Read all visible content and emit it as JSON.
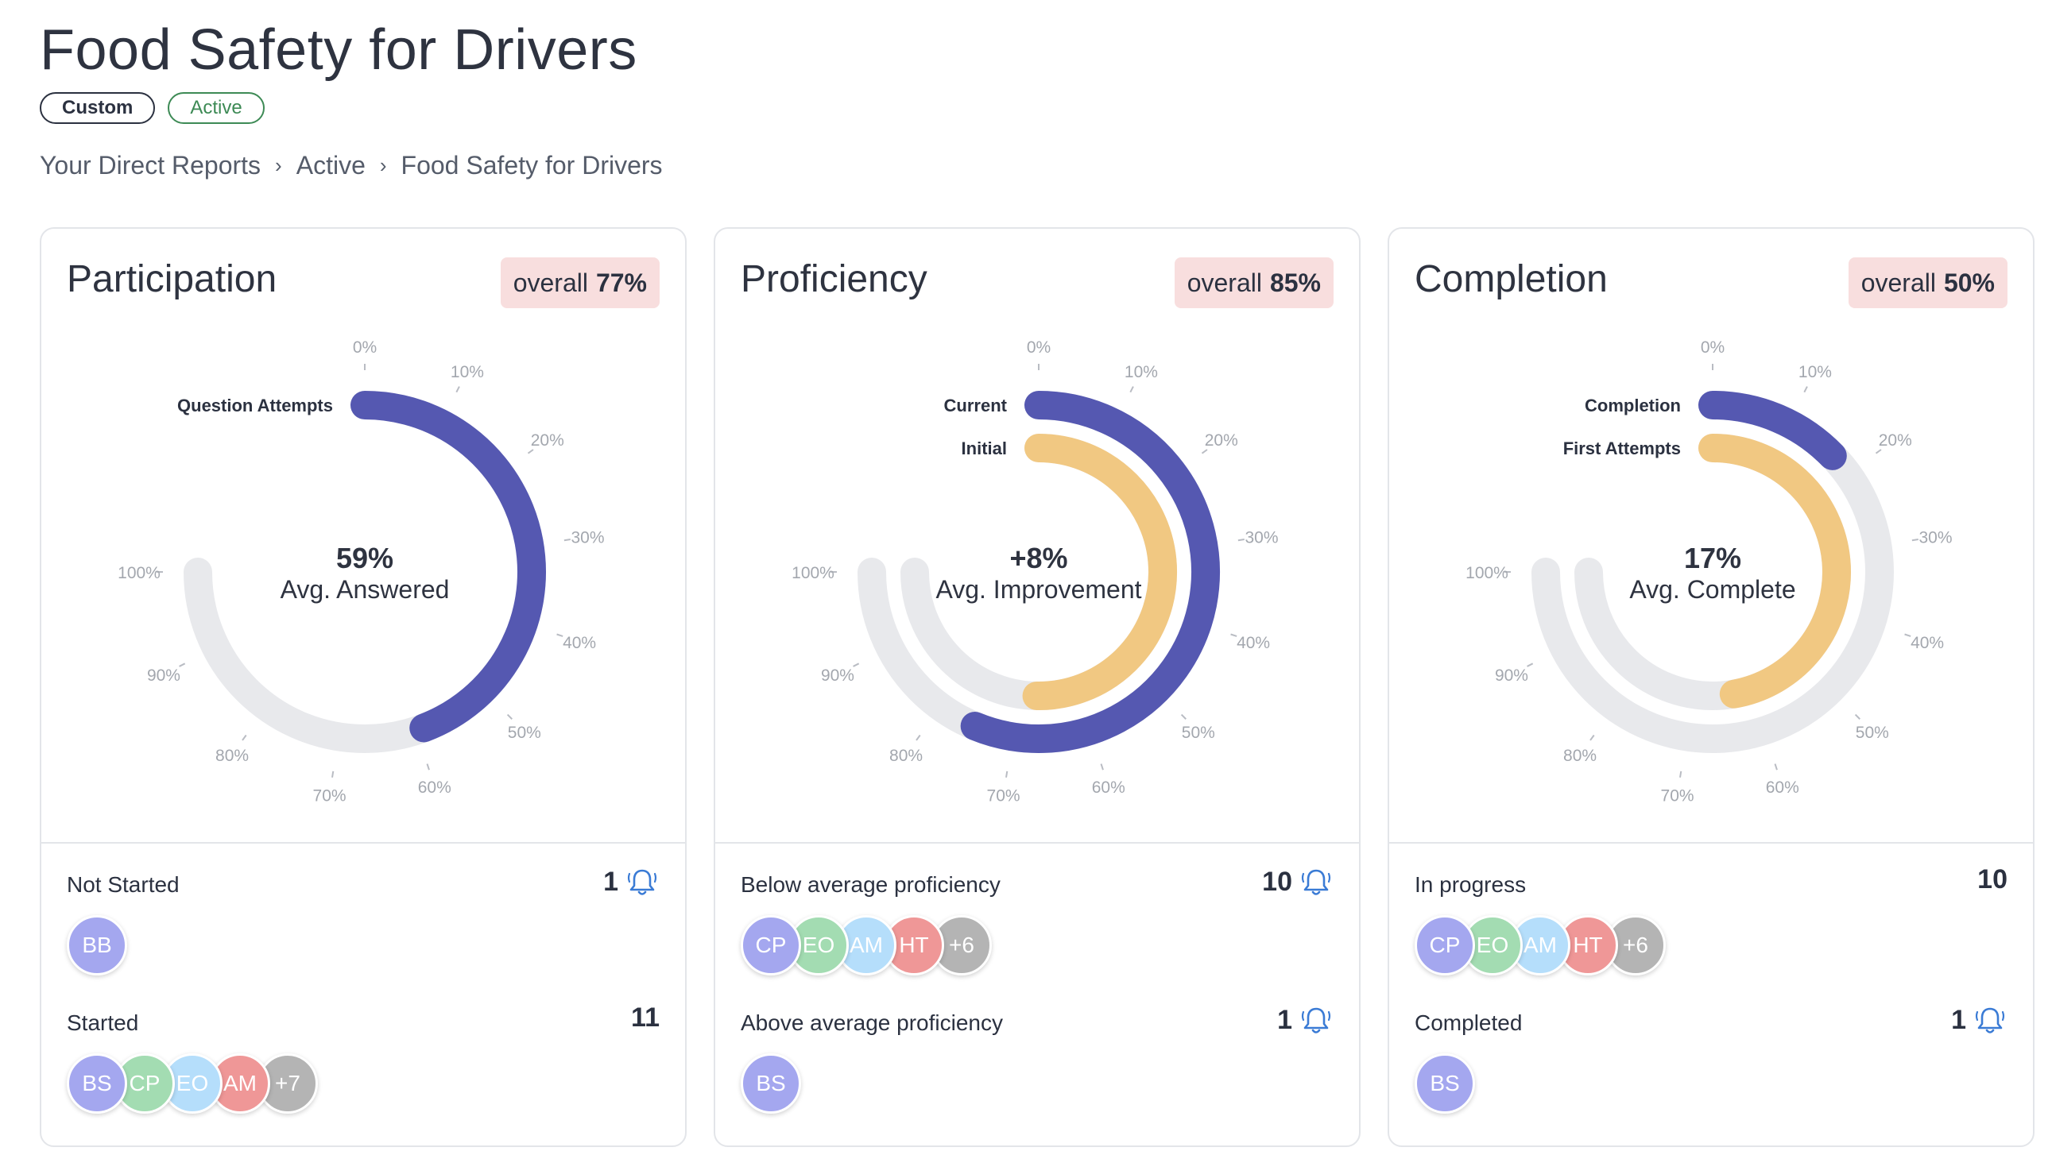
{
  "header": {
    "title": "Food Safety for Drivers",
    "tags": [
      "Custom",
      "Active"
    ],
    "breadcrumb": [
      "Your Direct Reports",
      "Active",
      "Food Safety for Drivers"
    ],
    "breadcrumb_sep": "›"
  },
  "colors": {
    "primary": "#5558b1",
    "secondary": "#f1c882",
    "track": "#e8e9ec",
    "overall_bg": "#f8dede",
    "avatar_purple": "#a4a7ef",
    "avatar_green": "#a3dcb2",
    "avatar_blue": "#b5defb",
    "avatar_red": "#ef9797",
    "avatar_gray": "#b4b4b4"
  },
  "tick_labels": [
    "0%",
    "10%",
    "20%",
    "30%",
    "40%",
    "50%",
    "60%",
    "70%",
    "80%",
    "90%",
    "100%"
  ],
  "cards": [
    {
      "title": "Participation",
      "overall_label": "overall",
      "overall_value": "77%",
      "center_value": "59%",
      "center_label": "Avg. Answered",
      "series": [
        {
          "name": "Question Attempts",
          "value": 59,
          "color": "primary"
        }
      ],
      "rows": [
        {
          "label": "Not Started",
          "count": "1",
          "bell": true,
          "avatars": [
            {
              "text": "BB",
              "color": "avatar_purple"
            }
          ]
        },
        {
          "label": "Started",
          "count": "11",
          "bell": false,
          "avatars": [
            {
              "text": "BS",
              "color": "avatar_purple"
            },
            {
              "text": "CP",
              "color": "avatar_green"
            },
            {
              "text": "EO",
              "color": "avatar_blue"
            },
            {
              "text": "AM",
              "color": "avatar_red"
            },
            {
              "text": "+7",
              "color": "avatar_gray"
            }
          ]
        }
      ]
    },
    {
      "title": "Proficiency",
      "overall_label": "overall",
      "overall_value": "85%",
      "center_value": "+8%",
      "center_label": "Avg. Improvement",
      "series": [
        {
          "name": "Current",
          "value": 75,
          "color": "primary"
        },
        {
          "name": "Initial",
          "value": 67,
          "color": "secondary"
        }
      ],
      "rows": [
        {
          "label": "Below average proficiency",
          "count": "10",
          "bell": true,
          "avatars": [
            {
              "text": "CP",
              "color": "avatar_purple"
            },
            {
              "text": "EO",
              "color": "avatar_green"
            },
            {
              "text": "AM",
              "color": "avatar_blue"
            },
            {
              "text": "HT",
              "color": "avatar_red"
            },
            {
              "text": "+6",
              "color": "avatar_gray"
            }
          ]
        },
        {
          "label": "Above average proficiency",
          "count": "1",
          "bell": true,
          "avatars": [
            {
              "text": "BS",
              "color": "avatar_purple"
            }
          ]
        }
      ]
    },
    {
      "title": "Completion",
      "overall_label": "overall",
      "overall_value": "50%",
      "center_value": "17%",
      "center_label": "Avg. Complete",
      "series": [
        {
          "name": "Completion",
          "value": 17,
          "color": "primary"
        },
        {
          "name": "First Attempts",
          "value": 63,
          "color": "secondary"
        }
      ],
      "rows": [
        {
          "label": "In progress",
          "count": "10",
          "bell": false,
          "avatars": [
            {
              "text": "CP",
              "color": "avatar_purple"
            },
            {
              "text": "EO",
              "color": "avatar_green"
            },
            {
              "text": "AM",
              "color": "avatar_blue"
            },
            {
              "text": "HT",
              "color": "avatar_red"
            },
            {
              "text": "+6",
              "color": "avatar_gray"
            }
          ]
        },
        {
          "label": "Completed",
          "count": "1",
          "bell": true,
          "avatars": [
            {
              "text": "BS",
              "color": "avatar_purple"
            }
          ]
        }
      ]
    }
  ]
}
